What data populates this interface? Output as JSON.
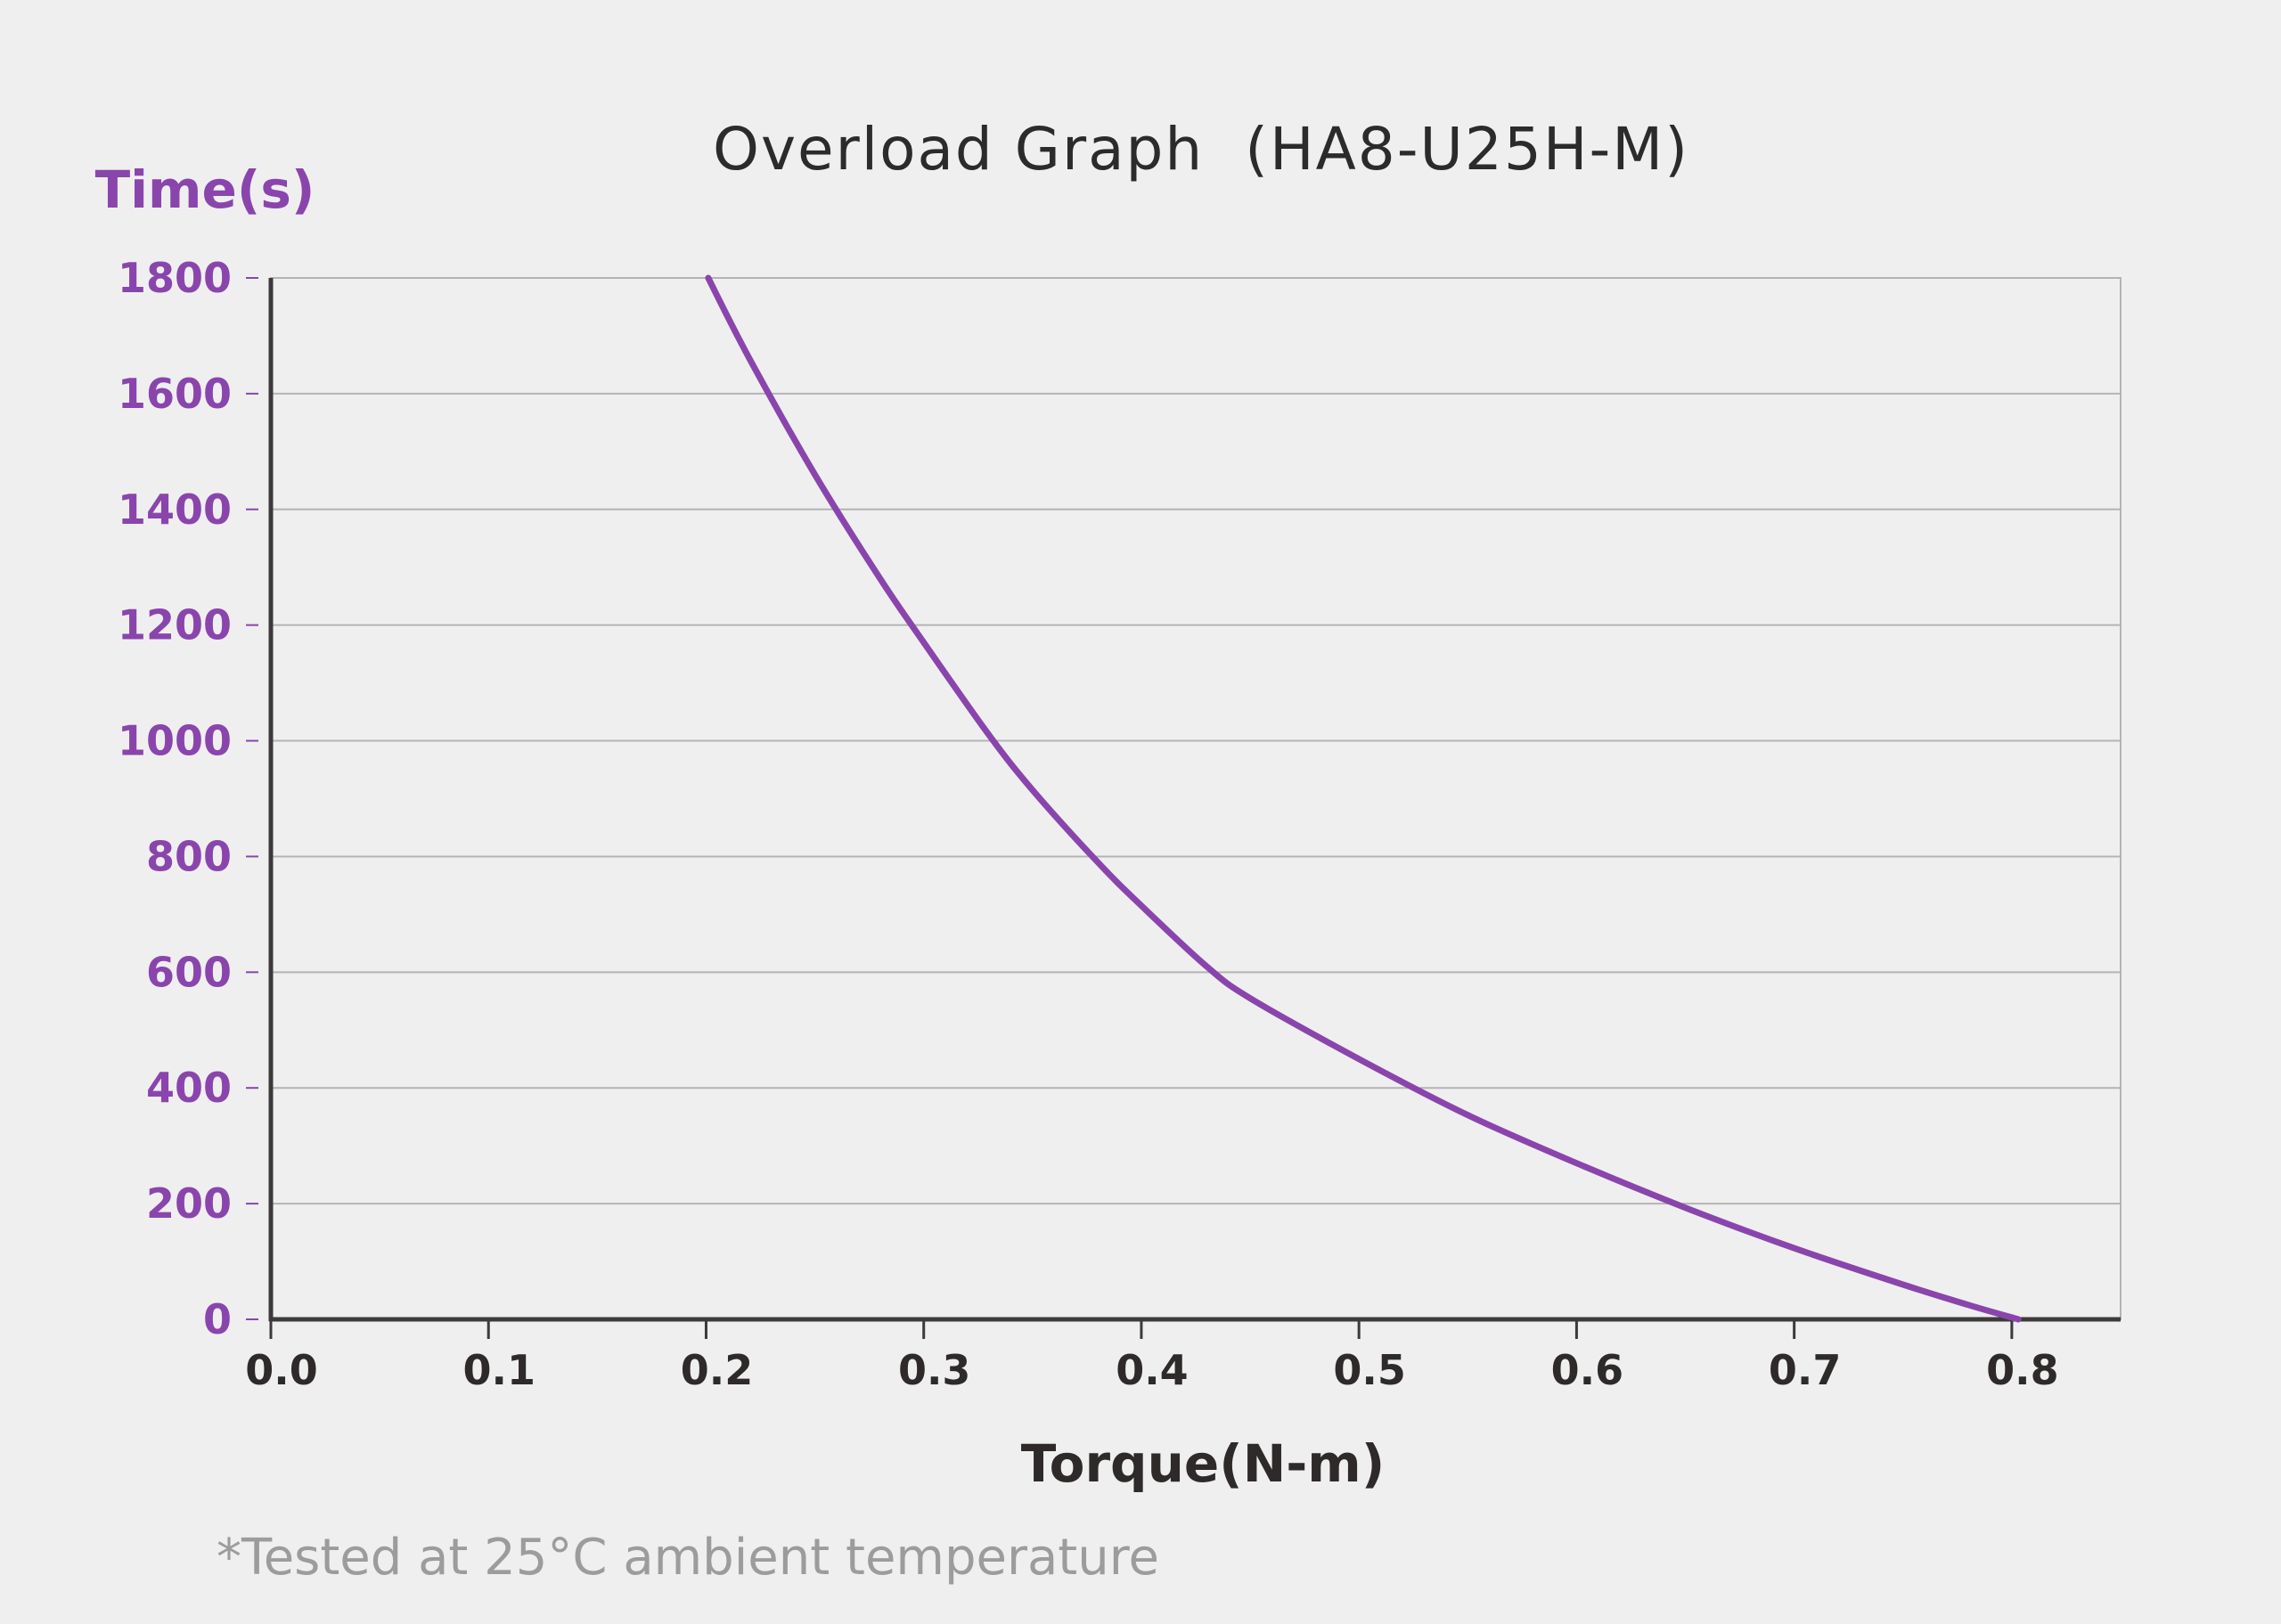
{
  "colors": {
    "background": "#efefef",
    "accent": "#8a45ad",
    "axis": "#3c3a3a",
    "grid": "#b4b4b4",
    "text": "#2e2a2a",
    "note": "#9c9c9c"
  },
  "chart_data": {
    "type": "line",
    "title": "Overload Graph  (HA8-U25H-M)",
    "xlabel": "Torque(N-m)",
    "ylabel": "Time(s)",
    "xlim": [
      0,
      0.85
    ],
    "ylim": [
      0,
      1800
    ],
    "xticks": [
      "0.0",
      "0.1",
      "0.2",
      "0.3",
      "0.4",
      "0.5",
      "0.6",
      "0.7",
      "0.8"
    ],
    "yticks": [
      "0",
      "200",
      "400",
      "600",
      "800",
      "1000",
      "1200",
      "1400",
      "1600",
      "1800"
    ],
    "grid": true,
    "series": [
      {
        "x": [
          0.201,
          0.22,
          0.25,
          0.28,
          0.3,
          0.33,
          0.35,
          0.38,
          0.4,
          0.43,
          0.45,
          0.5,
          0.55,
          0.6,
          0.65,
          0.7,
          0.75,
          0.78,
          0.803
        ],
        "y": [
          1800,
          1660,
          1460,
          1280,
          1170,
          1010,
          915,
          790,
          715,
          610,
          555,
          450,
          353,
          270,
          193,
          123,
          60,
          25,
          0
        ]
      }
    ]
  },
  "footnote": "*Tested at 25°C ambient temperature"
}
